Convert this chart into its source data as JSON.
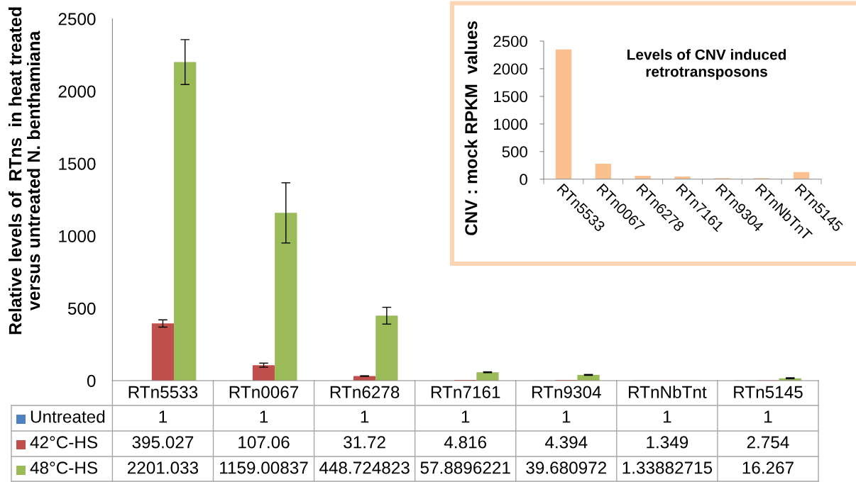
{
  "chart_data": [
    {
      "type": "bar",
      "ylabel": "Relative levels of  RTns  in heat treated\nversus untreated N. benthamiana",
      "categories": [
        "RTn5533",
        "RTn0067",
        "RTn6278",
        "RTn7161",
        "RTn9304",
        "RTnNbTnt",
        "RTn5145"
      ],
      "series": [
        {
          "name": "Untreated",
          "color": "#4f81bd",
          "values": [
            1,
            1,
            1,
            1,
            1,
            1,
            1
          ]
        },
        {
          "name": "42°C-HS",
          "color": "#c0504d",
          "values": [
            395.027,
            107.06,
            31.72,
            4.816,
            4.394,
            1.349,
            2.754
          ],
          "errors": [
            25,
            14,
            2,
            null,
            null,
            null,
            null
          ]
        },
        {
          "name": "48°C-HS",
          "color": "#9bbb59",
          "values": [
            2201.033,
            1159.00837,
            448.724823,
            57.8896221,
            39.680972,
            1.33882715,
            16.267
          ],
          "errors": [
            155,
            208,
            58,
            3,
            3,
            null,
            3
          ]
        }
      ],
      "ylim": [
        0,
        2500
      ],
      "yticks": [
        0,
        500,
        1000,
        1500,
        2000,
        2500
      ],
      "data_labels": true,
      "legend": "bottom"
    },
    {
      "type": "bar",
      "title": "Levels of CNV induced\nretrotransposons",
      "ylabel": "CNV : mock RPKM  values",
      "categories": [
        "RTn5533",
        "RTn0067",
        "RTn6278",
        "RTn7161",
        "RTn9304",
        "RTnNbTnT",
        "RTn5145"
      ],
      "values": [
        2350,
        280,
        60,
        50,
        20,
        20,
        130
      ],
      "color": "#fac090",
      "ylim": [
        0,
        2500
      ],
      "yticks": [
        0,
        500,
        1000,
        1500,
        2000,
        2500
      ]
    }
  ]
}
